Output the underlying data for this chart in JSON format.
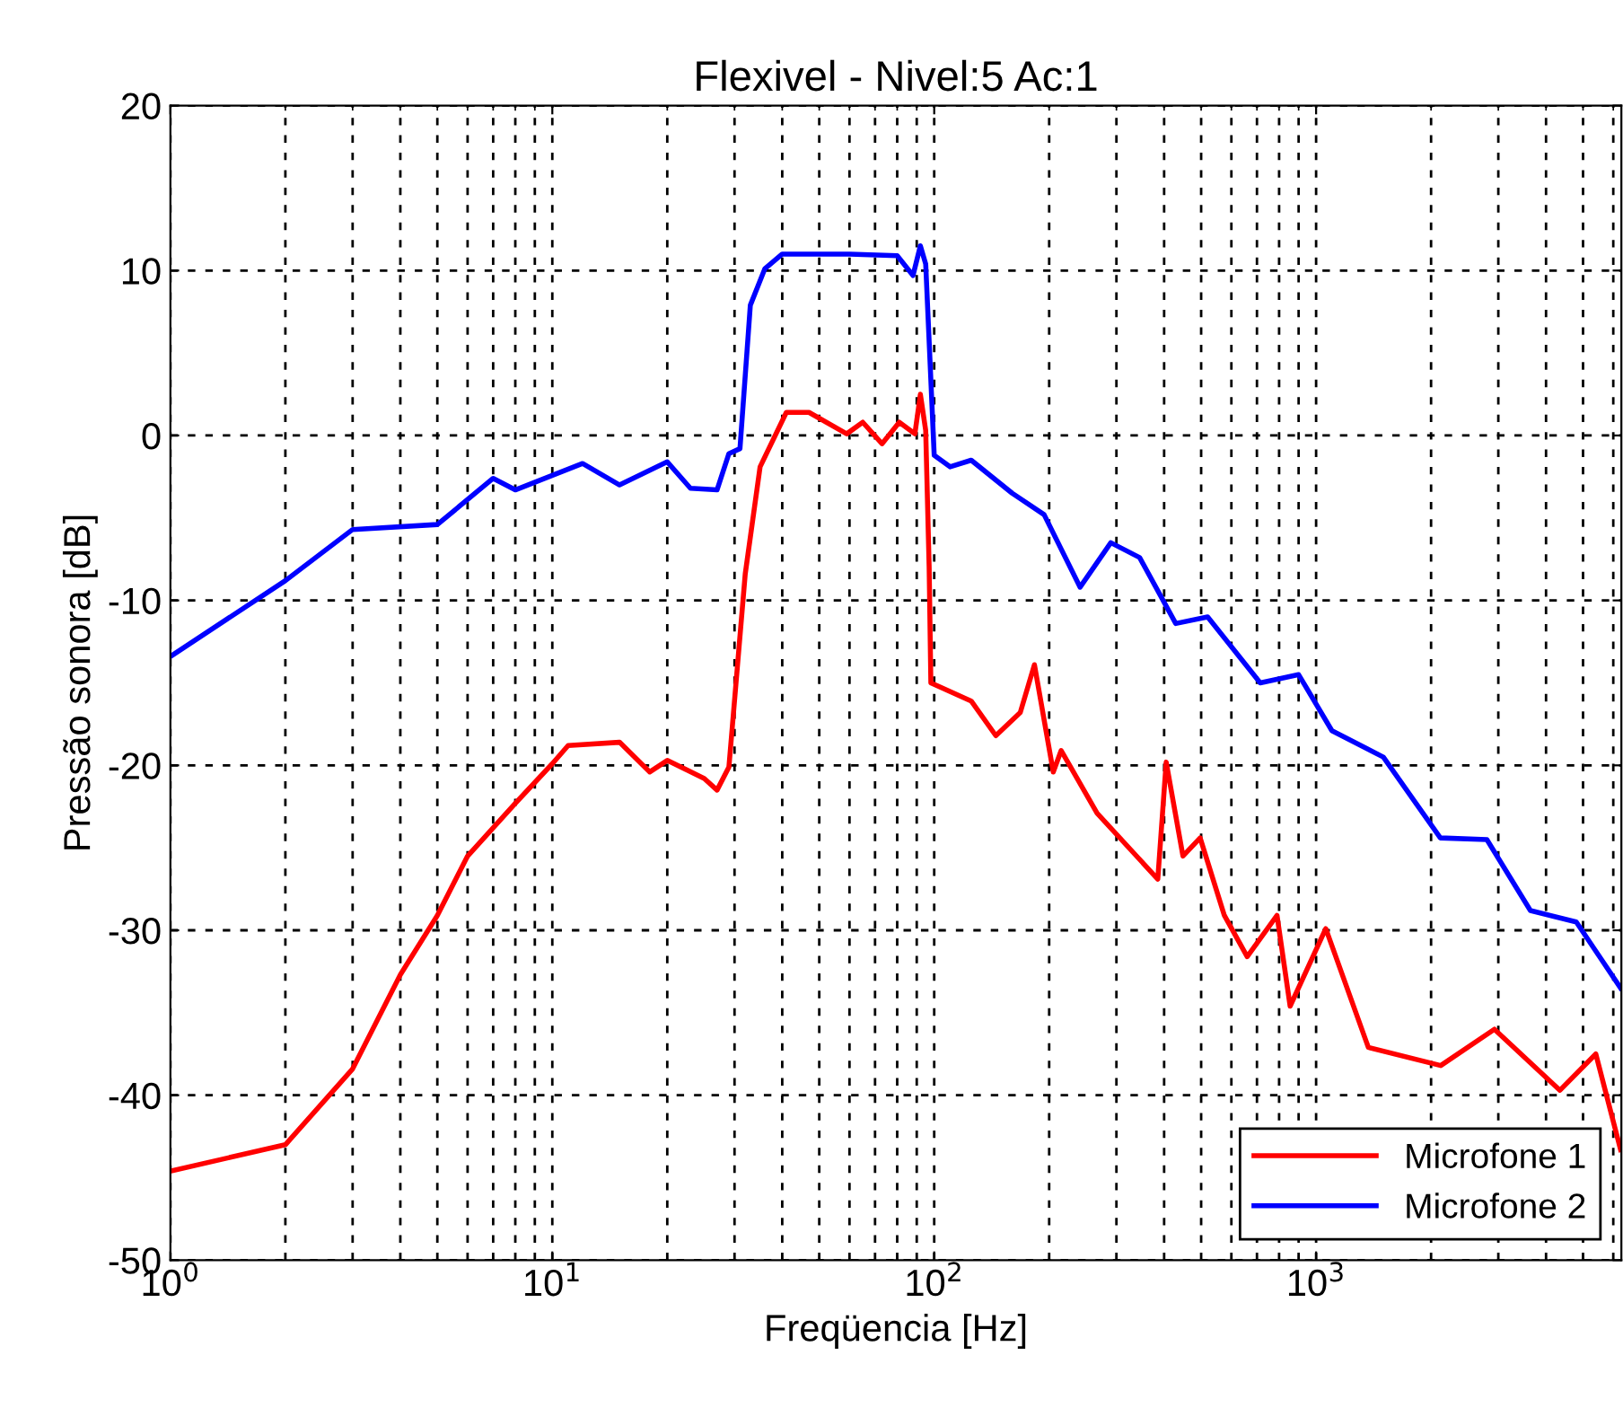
{
  "chart_data": {
    "type": "line",
    "title": "Flexivel - Nivel:5 Ac:1",
    "xlabel": "Freqüencia [Hz]",
    "ylabel": "Pressão sonora [dB]",
    "log": "x",
    "grid": true,
    "legend": "bottom right",
    "marker": "none",
    "line_style": "solid",
    "xlim": [
      1,
      6300
    ],
    "xticks": [
      {
        "value": 1,
        "label": "10$^{0}$"
      },
      {
        "value": 10,
        "label": "10$^{1}$"
      },
      {
        "value": 100,
        "label": "10$^{2}$"
      },
      {
        "value": 1000,
        "label": "10$^{3}$"
      }
    ],
    "ylim": [
      -50,
      20
    ],
    "yticks": [
      -50,
      -40,
      -30,
      -20,
      -10,
      0,
      10,
      20
    ],
    "series": [
      {
        "name": "Microfone 1",
        "color": "#ff0000",
        "x": [
          1,
          2,
          3,
          4,
          5,
          6,
          8,
          10,
          11,
          15,
          18,
          20,
          25,
          27,
          29,
          32,
          35,
          41,
          47,
          59,
          65,
          73,
          81,
          89,
          92,
          95,
          97,
          98,
          125,
          145,
          168,
          183,
          205,
          215,
          267,
          385,
          405,
          448,
          497,
          575,
          660,
          790,
          855,
          1060,
          1370,
          2120,
          2930,
          4350,
          5400,
          6270
        ],
        "values": [
          -44.6,
          -43.0,
          -38.4,
          -32.7,
          -29.1,
          -25.5,
          -22.3,
          -19.9,
          -18.8,
          -18.6,
          -20.4,
          -19.7,
          -20.8,
          -21.5,
          -20.1,
          -8.4,
          -1.9,
          1.4,
          1.4,
          0.1,
          0.8,
          -0.5,
          0.8,
          0.1,
          2.5,
          0.3,
          -8,
          -15.0,
          -16.1,
          -18.2,
          -16.8,
          -13.9,
          -20.4,
          -19.1,
          -22.9,
          -26.9,
          -19.8,
          -25.5,
          -24.4,
          -29.1,
          -31.6,
          -29.1,
          -34.6,
          -29.9,
          -37.1,
          -38.2,
          -36.0,
          -39.7,
          -37.5,
          -43.3
        ]
      },
      {
        "name": "Microfone 2",
        "color": "#0000ff",
        "x": [
          1,
          2,
          3,
          5,
          7,
          8,
          12,
          15,
          20,
          23,
          27,
          29,
          31,
          33,
          36,
          40,
          60,
          80,
          88,
          92,
          95,
          100,
          110,
          125,
          160,
          194,
          241,
          290,
          345,
          429,
          520,
          714,
          900,
          1100,
          1500,
          2115,
          2800,
          3640,
          4800,
          6270
        ],
        "values": [
          -13.4,
          -8.8,
          -5.7,
          -5.4,
          -2.6,
          -3.3,
          -1.7,
          -3.0,
          -1.6,
          -3.2,
          -3.3,
          -1.1,
          -0.8,
          7.9,
          10.1,
          11.0,
          11.0,
          10.9,
          9.7,
          11.5,
          10.4,
          -1.2,
          -1.9,
          -1.5,
          -3.5,
          -4.8,
          -9.2,
          -6.5,
          -7.4,
          -11.4,
          -11.0,
          -15.0,
          -14.5,
          -17.9,
          -19.5,
          -24.4,
          -24.5,
          -28.8,
          -29.5,
          -33.5
        ]
      }
    ]
  }
}
